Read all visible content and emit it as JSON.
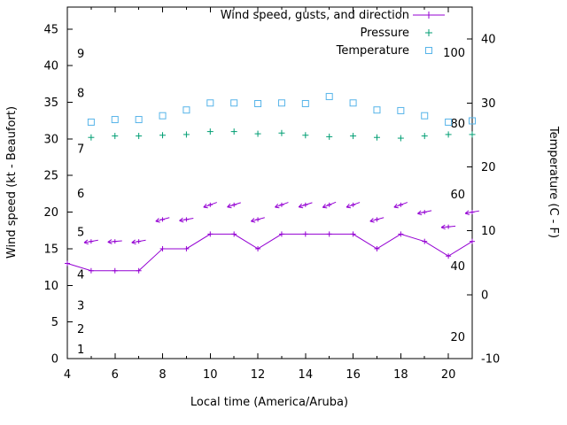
{
  "chart_data": {
    "type": "line",
    "title": "",
    "xlabel": "Local time (America/Aruba)",
    "ylabel_left": "Wind speed (kt - Beaufort)",
    "ylabel_right": "Temperature (C - F)",
    "x_range": [
      4,
      21
    ],
    "x_major_ticks": [
      4,
      6,
      8,
      10,
      12,
      14,
      16,
      18,
      20
    ],
    "x_minor_ticks": [
      5,
      7,
      9,
      11,
      13,
      15,
      17,
      19,
      21
    ],
    "y_left_range": [
      0,
      48
    ],
    "y_left_ticks": [
      0,
      5,
      10,
      15,
      20,
      25,
      30,
      35,
      40,
      45
    ],
    "y_right_range": [
      -10,
      45
    ],
    "y_right_ticks": [
      -10,
      0,
      10,
      20,
      30,
      40
    ],
    "grid": false,
    "legend_position": "top-right-inside",
    "colors": {
      "background": "#ffffff",
      "frame": "#000000",
      "text": "#000000",
      "wind": "#9400d3",
      "pressure": "#009e73",
      "temperature": "#56b4e9"
    },
    "beaufort_scale_labels": [
      {
        "label": "1",
        "kt": 1.2
      },
      {
        "label": "2",
        "kt": 4.0
      },
      {
        "label": "3",
        "kt": 7.2
      },
      {
        "label": "4",
        "kt": 11.4
      },
      {
        "label": "5",
        "kt": 17.2
      },
      {
        "label": "6",
        "kt": 22.5
      },
      {
        "label": "7",
        "kt": 28.6
      },
      {
        "label": "8",
        "kt": 36.2
      },
      {
        "label": "9",
        "kt": 41.6
      }
    ],
    "fahrenheit_scale_labels": [
      {
        "label": "100",
        "c": 37.8
      },
      {
        "label": "80",
        "c": 26.7
      },
      {
        "label": "60",
        "c": 15.6
      },
      {
        "label": "40",
        "c": 4.4
      },
      {
        "label": "20",
        "c": -6.7
      }
    ],
    "legend": [
      {
        "label": "Wind speed, gusts, and direction",
        "marker": "line-plus",
        "color": "#9400d3"
      },
      {
        "label": "Pressure",
        "marker": "plus",
        "color": "#009e73"
      },
      {
        "label": "Temperature",
        "marker": "square",
        "color": "#56b4e9"
      }
    ],
    "series": [
      {
        "name": "wind-speed",
        "type": "linespoints",
        "axis": "left",
        "color": "#9400d3",
        "x": [
          4,
          5,
          6,
          7,
          8,
          9,
          10,
          11,
          12,
          13,
          14,
          15,
          16,
          17,
          18,
          19,
          20,
          21
        ],
        "y": [
          13,
          12,
          12,
          12,
          15,
          15,
          17,
          17,
          15,
          17,
          17,
          17,
          17,
          15,
          17,
          16,
          14,
          16
        ]
      },
      {
        "name": "wind-gusts",
        "type": "vectors",
        "axis": "left",
        "color": "#9400d3",
        "x": [
          5,
          6,
          7,
          8,
          9,
          10,
          11,
          12,
          13,
          14,
          15,
          16,
          17,
          18,
          19,
          20,
          21
        ],
        "y": [
          16,
          16,
          16,
          19,
          19,
          21,
          21,
          19,
          21,
          21,
          21,
          21,
          19,
          21,
          20,
          18,
          20
        ],
        "direction_deg": [
          80,
          85,
          80,
          75,
          80,
          70,
          72,
          75,
          70,
          72,
          68,
          70,
          75,
          70,
          78,
          85,
          80
        ]
      },
      {
        "name": "pressure",
        "type": "points",
        "marker": "plus",
        "axis": "left",
        "color": "#009e73",
        "x": [
          5,
          6,
          7,
          8,
          9,
          10,
          11,
          12,
          13,
          14,
          15,
          16,
          17,
          18,
          19,
          20,
          21
        ],
        "y": [
          30.2,
          30.4,
          30.4,
          30.5,
          30.6,
          31.0,
          31.0,
          30.7,
          30.8,
          30.5,
          30.3,
          30.4,
          30.2,
          30.1,
          30.4,
          30.6,
          30.6
        ]
      },
      {
        "name": "temperature",
        "type": "points",
        "marker": "square",
        "axis": "right",
        "color": "#56b4e9",
        "x": [
          5,
          6,
          7,
          8,
          9,
          10,
          11,
          12,
          13,
          14,
          15,
          16,
          17,
          18,
          19,
          20,
          21
        ],
        "y": [
          27.0,
          27.4,
          27.4,
          28.0,
          28.9,
          30.0,
          30.0,
          29.9,
          30.0,
          29.9,
          31.0,
          30.0,
          28.9,
          28.8,
          28.0,
          27.0,
          27.2
        ]
      }
    ]
  }
}
